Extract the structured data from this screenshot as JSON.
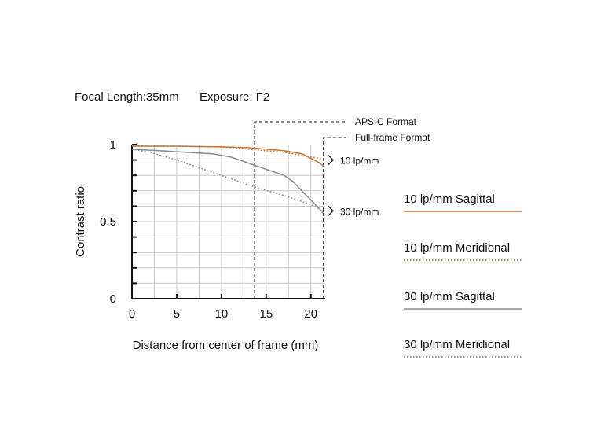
{
  "header": {
    "focal_length": "Focal Length:35mm",
    "exposure": "Exposure: F2"
  },
  "colors": {
    "sagittal_10": "#c87533",
    "meridional_10": "#c87533",
    "sagittal_30": "#8a8a8a",
    "meridional_30": "#8a8a8a",
    "grid": "#c8c8c8",
    "axis": "#111111"
  },
  "chart_data": {
    "type": "line",
    "title": "",
    "xlabel": "Distance from center of frame (mm)",
    "ylabel": "Contrast ratio",
    "xlim": [
      0,
      21.6
    ],
    "ylim": [
      0,
      1
    ],
    "x_ticks": [
      0,
      5,
      10,
      15,
      20
    ],
    "y_tick_labels": [
      {
        "value": 1,
        "label": "1"
      },
      {
        "value": 0.5,
        "label": "0.5"
      },
      {
        "value": 0,
        "label": "0"
      }
    ],
    "grid": true,
    "series": [
      {
        "name": "10 lp/mm Sagittal",
        "style": "solid",
        "color": "#c87533",
        "x": [
          0,
          5,
          10,
          13,
          15,
          17,
          18,
          19,
          20,
          21,
          21.4
        ],
        "y": [
          0.99,
          0.99,
          0.985,
          0.98,
          0.97,
          0.96,
          0.95,
          0.94,
          0.91,
          0.88,
          0.86
        ]
      },
      {
        "name": "10 lp/mm Meridional",
        "style": "dotted",
        "color": "#c87533",
        "x": [
          0,
          5,
          10,
          15,
          17,
          19,
          20,
          21,
          21.4
        ],
        "y": [
          0.99,
          0.99,
          0.985,
          0.96,
          0.95,
          0.93,
          0.92,
          0.91,
          0.91
        ]
      },
      {
        "name": "30 lp/mm Sagittal",
        "style": "solid",
        "color": "#8a8a8a",
        "x": [
          0,
          3,
          6,
          9,
          11,
          13,
          15,
          17,
          18,
          19,
          20,
          21,
          21.4
        ],
        "y": [
          0.97,
          0.96,
          0.95,
          0.94,
          0.92,
          0.88,
          0.84,
          0.8,
          0.76,
          0.7,
          0.64,
          0.58,
          0.56
        ]
      },
      {
        "name": "30 lp/mm Meridional",
        "style": "dotted",
        "color": "#8a8a8a",
        "x": [
          0,
          2,
          5,
          8,
          11,
          14,
          17,
          19,
          20,
          21,
          21.4
        ],
        "y": [
          0.97,
          0.95,
          0.9,
          0.84,
          0.78,
          0.72,
          0.67,
          0.63,
          0.61,
          0.58,
          0.55
        ]
      }
    ],
    "annotations": {
      "apsc_label": "APS-C Format",
      "apsc_x": 13.7,
      "fullframe_label": "Full-frame Format",
      "fullframe_x": 21.4,
      "group_10": "10 lp/mm",
      "group_30": "30 lp/mm"
    },
    "legend": {
      "placement": "right",
      "items": [
        {
          "label": "10 lp/mm Sagittal",
          "style": "solid",
          "color": "#c87533"
        },
        {
          "label": "10 lp/mm Meridional",
          "style": "dotted",
          "color": "#c87533"
        },
        {
          "label": "30 lp/mm Sagittal",
          "style": "solid",
          "color": "#8a8a8a"
        },
        {
          "label": "30 lp/mm Meridional",
          "style": "dotted",
          "color": "#8a8a8a"
        }
      ]
    }
  }
}
